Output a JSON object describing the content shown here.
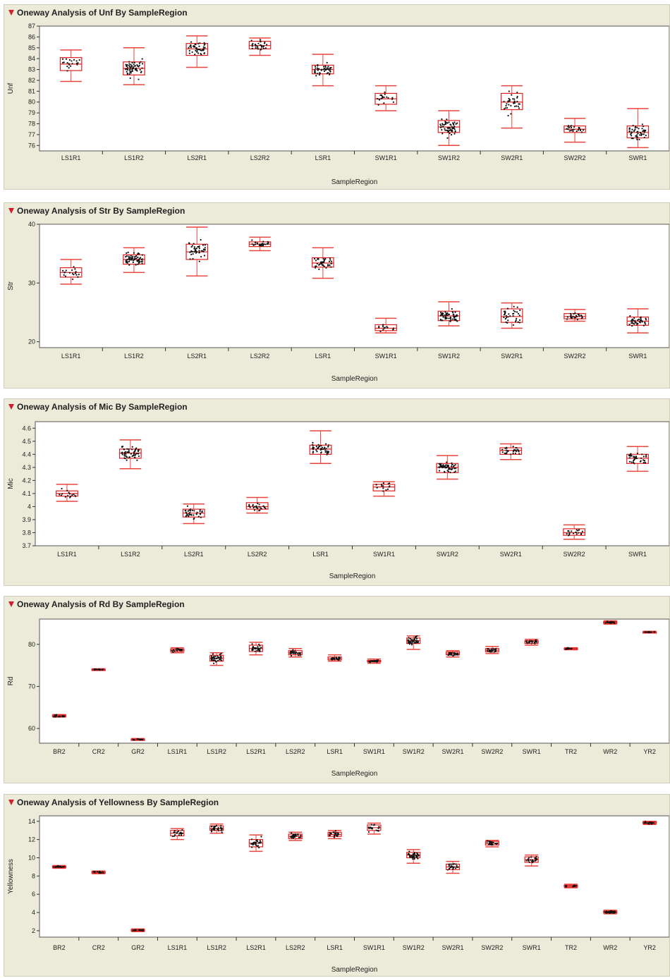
{
  "chart_data": [
    {
      "type": "box",
      "title": "Oneway Analysis of Unf By SampleRegion",
      "xlabel": "SampleRegion",
      "ylabel": "Unf",
      "ylim": [
        75.5,
        87
      ],
      "yticks": [
        76,
        77,
        78,
        79,
        80,
        81,
        82,
        83,
        84,
        85,
        86,
        87
      ],
      "categories": [
        "LS1R1",
        "LS1R2",
        "LS2R1",
        "LS2R2",
        "LSR1",
        "SW1R1",
        "SW1R2",
        "SW2R1",
        "SW2R2",
        "SWR1"
      ],
      "boxes": [
        {
          "min": 81.9,
          "q1": 82.9,
          "median": 83.5,
          "q3": 84.1,
          "max": 84.8,
          "n": 20
        },
        {
          "min": 81.6,
          "q1": 82.5,
          "median": 83.1,
          "q3": 83.7,
          "max": 85.0,
          "n": 60
        },
        {
          "min": 83.2,
          "q1": 84.3,
          "median": 84.9,
          "q3": 85.4,
          "max": 86.1,
          "n": 45
        },
        {
          "min": 84.3,
          "q1": 84.9,
          "median": 85.2,
          "q3": 85.6,
          "max": 85.9,
          "n": 30
        },
        {
          "min": 81.5,
          "q1": 82.6,
          "median": 83.0,
          "q3": 83.4,
          "max": 84.4,
          "n": 45
        },
        {
          "min": 79.2,
          "q1": 79.8,
          "median": 80.3,
          "q3": 80.8,
          "max": 81.5,
          "n": 20
        },
        {
          "min": 76.0,
          "q1": 77.2,
          "median": 77.7,
          "q3": 78.3,
          "max": 79.2,
          "n": 60
        },
        {
          "min": 77.6,
          "q1": 79.3,
          "median": 80.0,
          "q3": 80.8,
          "max": 81.5,
          "n": 35
        },
        {
          "min": 76.3,
          "q1": 77.2,
          "median": 77.5,
          "q3": 77.8,
          "max": 78.5,
          "n": 25
        },
        {
          "min": 75.8,
          "q1": 76.7,
          "median": 77.2,
          "q3": 77.8,
          "max": 79.4,
          "n": 50
        }
      ]
    },
    {
      "type": "box",
      "title": "Oneway Analysis of Str By SampleRegion",
      "xlabel": "SampleRegion",
      "ylabel": "Str",
      "ylim": [
        19,
        40
      ],
      "yticks": [
        20,
        30,
        40
      ],
      "categories": [
        "LS1R1",
        "LS1R2",
        "LS2R1",
        "LS2R2",
        "LSR1",
        "SW1R1",
        "SW1R2",
        "SW2R1",
        "SW2R2",
        "SWR1"
      ],
      "boxes": [
        {
          "min": 29.8,
          "q1": 31.0,
          "median": 31.8,
          "q3": 32.6,
          "max": 34.0,
          "n": 20
        },
        {
          "min": 31.8,
          "q1": 33.2,
          "median": 34.0,
          "q3": 34.8,
          "max": 36.0,
          "n": 60
        },
        {
          "min": 31.2,
          "q1": 34.0,
          "median": 35.3,
          "q3": 36.6,
          "max": 39.5,
          "n": 45
        },
        {
          "min": 35.5,
          "q1": 36.2,
          "median": 36.6,
          "q3": 37.0,
          "max": 37.8,
          "n": 30
        },
        {
          "min": 30.8,
          "q1": 32.7,
          "median": 33.4,
          "q3": 34.3,
          "max": 36.0,
          "n": 45
        },
        {
          "min": 21.5,
          "q1": 21.9,
          "median": 22.3,
          "q3": 22.9,
          "max": 24.0,
          "n": 15
        },
        {
          "min": 22.7,
          "q1": 23.6,
          "median": 24.4,
          "q3": 25.2,
          "max": 26.8,
          "n": 60
        },
        {
          "min": 22.3,
          "q1": 23.3,
          "median": 24.3,
          "q3": 25.6,
          "max": 26.6,
          "n": 35
        },
        {
          "min": 23.5,
          "q1": 23.9,
          "median": 24.3,
          "q3": 24.8,
          "max": 25.5,
          "n": 25
        },
        {
          "min": 21.5,
          "q1": 22.8,
          "median": 23.5,
          "q3": 24.2,
          "max": 25.6,
          "n": 40
        }
      ]
    },
    {
      "type": "box",
      "title": "Oneway Analysis of Mic By SampleRegion",
      "xlabel": "SampleRegion",
      "ylabel": "Mic",
      "ylim": [
        3.7,
        4.65
      ],
      "yticks": [
        "3.7",
        "3.8",
        "3.9",
        "4",
        "4.1",
        "4.2",
        "4.3",
        "4.4",
        "4.5",
        "4.6"
      ],
      "categories": [
        "LS1R1",
        "LS1R2",
        "LS2R1",
        "LS2R2",
        "LSR1",
        "SW1R1",
        "SW1R2",
        "SW2R1",
        "SW2R2",
        "SWR1"
      ],
      "boxes": [
        {
          "min": 4.04,
          "q1": 4.08,
          "median": 4.1,
          "q3": 4.12,
          "max": 4.17,
          "n": 15
        },
        {
          "min": 4.29,
          "q1": 4.37,
          "median": 4.41,
          "q3": 4.44,
          "max": 4.51,
          "n": 55
        },
        {
          "min": 3.87,
          "q1": 3.92,
          "median": 3.95,
          "q3": 3.98,
          "max": 4.02,
          "n": 35
        },
        {
          "min": 3.95,
          "q1": 3.98,
          "median": 4.0,
          "q3": 4.03,
          "max": 4.07,
          "n": 25
        },
        {
          "min": 4.33,
          "q1": 4.4,
          "median": 4.44,
          "q3": 4.47,
          "max": 4.58,
          "n": 45
        },
        {
          "min": 4.08,
          "q1": 4.12,
          "median": 4.15,
          "q3": 4.17,
          "max": 4.19,
          "n": 15
        },
        {
          "min": 4.21,
          "q1": 4.26,
          "median": 4.3,
          "q3": 4.33,
          "max": 4.39,
          "n": 55
        },
        {
          "min": 4.36,
          "q1": 4.4,
          "median": 4.43,
          "q3": 4.45,
          "max": 4.48,
          "n": 30
        },
        {
          "min": 3.75,
          "q1": 3.78,
          "median": 3.8,
          "q3": 3.83,
          "max": 3.86,
          "n": 20
        },
        {
          "min": 4.27,
          "q1": 4.33,
          "median": 4.37,
          "q3": 4.4,
          "max": 4.46,
          "n": 40
        }
      ]
    },
    {
      "type": "box",
      "title": "Oneway Analysis of Rd By SampleRegion",
      "xlabel": "SampleRegion",
      "ylabel": "Rd",
      "ylim": [
        56.5,
        86
      ],
      "yticks": [
        60,
        70,
        80
      ],
      "categories": [
        "BR2",
        "CR2",
        "GR2",
        "LS1R1",
        "LS1R2",
        "LS2R1",
        "LS2R2",
        "LSR1",
        "SW1R1",
        "SW1R2",
        "SW2R1",
        "SW2R2",
        "SWR1",
        "TR2",
        "WR2",
        "YR2"
      ],
      "boxes": [
        {
          "min": 62.7,
          "q1": 62.8,
          "median": 63.0,
          "q3": 63.2,
          "max": 63.3,
          "n": 15
        },
        {
          "min": 73.8,
          "q1": 73.9,
          "median": 74.0,
          "q3": 74.1,
          "max": 74.2,
          "n": 15
        },
        {
          "min": 57.2,
          "q1": 57.3,
          "median": 57.4,
          "q3": 57.5,
          "max": 57.6,
          "n": 15
        },
        {
          "min": 78.0,
          "q1": 78.3,
          "median": 78.6,
          "q3": 78.9,
          "max": 79.2,
          "n": 20
        },
        {
          "min": 75.0,
          "q1": 76.0,
          "median": 76.7,
          "q3": 77.4,
          "max": 78.0,
          "n": 40
        },
        {
          "min": 77.5,
          "q1": 78.3,
          "median": 79.0,
          "q3": 79.8,
          "max": 80.5,
          "n": 30
        },
        {
          "min": 77.0,
          "q1": 77.5,
          "median": 78.0,
          "q3": 78.5,
          "max": 79.0,
          "n": 25
        },
        {
          "min": 76.0,
          "q1": 76.3,
          "median": 76.6,
          "q3": 77.0,
          "max": 77.5,
          "n": 25
        },
        {
          "min": 75.5,
          "q1": 75.8,
          "median": 76.0,
          "q3": 76.2,
          "max": 76.5,
          "n": 20
        },
        {
          "min": 78.8,
          "q1": 80.2,
          "median": 80.9,
          "q3": 81.5,
          "max": 82.0,
          "n": 45
        },
        {
          "min": 77.0,
          "q1": 77.5,
          "median": 77.8,
          "q3": 78.2,
          "max": 78.5,
          "n": 25
        },
        {
          "min": 77.8,
          "q1": 78.2,
          "median": 78.6,
          "q3": 79.0,
          "max": 79.5,
          "n": 25
        },
        {
          "min": 79.8,
          "q1": 80.2,
          "median": 80.6,
          "q3": 80.9,
          "max": 81.2,
          "n": 25
        },
        {
          "min": 78.7,
          "q1": 78.8,
          "median": 79.0,
          "q3": 79.1,
          "max": 79.2,
          "n": 15
        },
        {
          "min": 84.8,
          "q1": 85.0,
          "median": 85.2,
          "q3": 85.4,
          "max": 85.6,
          "n": 20
        },
        {
          "min": 82.7,
          "q1": 82.8,
          "median": 82.9,
          "q3": 83.0,
          "max": 83.1,
          "n": 15
        }
      ]
    },
    {
      "type": "box",
      "title": "Oneway Analysis of Yellowness By SampleRegion",
      "xlabel": "SampleRegion",
      "ylabel": "Yellowness",
      "ylim": [
        1.3,
        14.6
      ],
      "yticks": [
        2,
        4,
        6,
        8,
        10,
        12,
        14
      ],
      "categories": [
        "BR2",
        "CR2",
        "GR2",
        "LS1R1",
        "LS1R2",
        "LS2R1",
        "LS2R2",
        "LSR1",
        "SW1R1",
        "SW1R2",
        "SW2R1",
        "SW2R2",
        "SWR1",
        "TR2",
        "WR2",
        "YR2"
      ],
      "boxes": [
        {
          "min": 8.85,
          "q1": 8.92,
          "median": 9.0,
          "q3": 9.08,
          "max": 9.15,
          "n": 15
        },
        {
          "min": 8.25,
          "q1": 8.32,
          "median": 8.4,
          "q3": 8.48,
          "max": 8.55,
          "n": 15
        },
        {
          "min": 1.9,
          "q1": 1.97,
          "median": 2.05,
          "q3": 2.13,
          "max": 2.2,
          "n": 15
        },
        {
          "min": 12.0,
          "q1": 12.4,
          "median": 12.7,
          "q3": 13.0,
          "max": 13.2,
          "n": 20
        },
        {
          "min": 12.7,
          "q1": 13.0,
          "median": 13.2,
          "q3": 13.5,
          "max": 13.7,
          "n": 30
        },
        {
          "min": 10.7,
          "q1": 11.2,
          "median": 11.6,
          "q3": 12.0,
          "max": 12.5,
          "n": 30
        },
        {
          "min": 11.9,
          "q1": 12.1,
          "median": 12.35,
          "q3": 12.6,
          "max": 12.8,
          "n": 25
        },
        {
          "min": 12.1,
          "q1": 12.35,
          "median": 12.55,
          "q3": 12.8,
          "max": 13.0,
          "n": 25
        },
        {
          "min": 12.6,
          "q1": 13.0,
          "median": 13.3,
          "q3": 13.6,
          "max": 13.8,
          "n": 20
        },
        {
          "min": 9.4,
          "q1": 10.0,
          "median": 10.3,
          "q3": 10.6,
          "max": 10.9,
          "n": 40
        },
        {
          "min": 8.3,
          "q1": 8.7,
          "median": 9.0,
          "q3": 9.3,
          "max": 9.6,
          "n": 25
        },
        {
          "min": 11.2,
          "q1": 11.4,
          "median": 11.6,
          "q3": 11.8,
          "max": 11.9,
          "n": 25
        },
        {
          "min": 9.1,
          "q1": 9.5,
          "median": 9.8,
          "q3": 10.1,
          "max": 10.3,
          "n": 25
        },
        {
          "min": 6.7,
          "q1": 6.8,
          "median": 6.9,
          "q3": 7.0,
          "max": 7.1,
          "n": 15
        },
        {
          "min": 3.85,
          "q1": 3.95,
          "median": 4.05,
          "q3": 4.15,
          "max": 4.25,
          "n": 30
        },
        {
          "min": 13.65,
          "q1": 13.75,
          "median": 13.85,
          "q3": 13.95,
          "max": 14.0,
          "n": 15
        }
      ]
    }
  ],
  "colors": {
    "box": "#e02020",
    "whisker": "#e8453c",
    "point": "#111111",
    "panel_bg": "#ecead9",
    "plot_bg": "#ffffff",
    "disclosure": "#d21f2b"
  }
}
